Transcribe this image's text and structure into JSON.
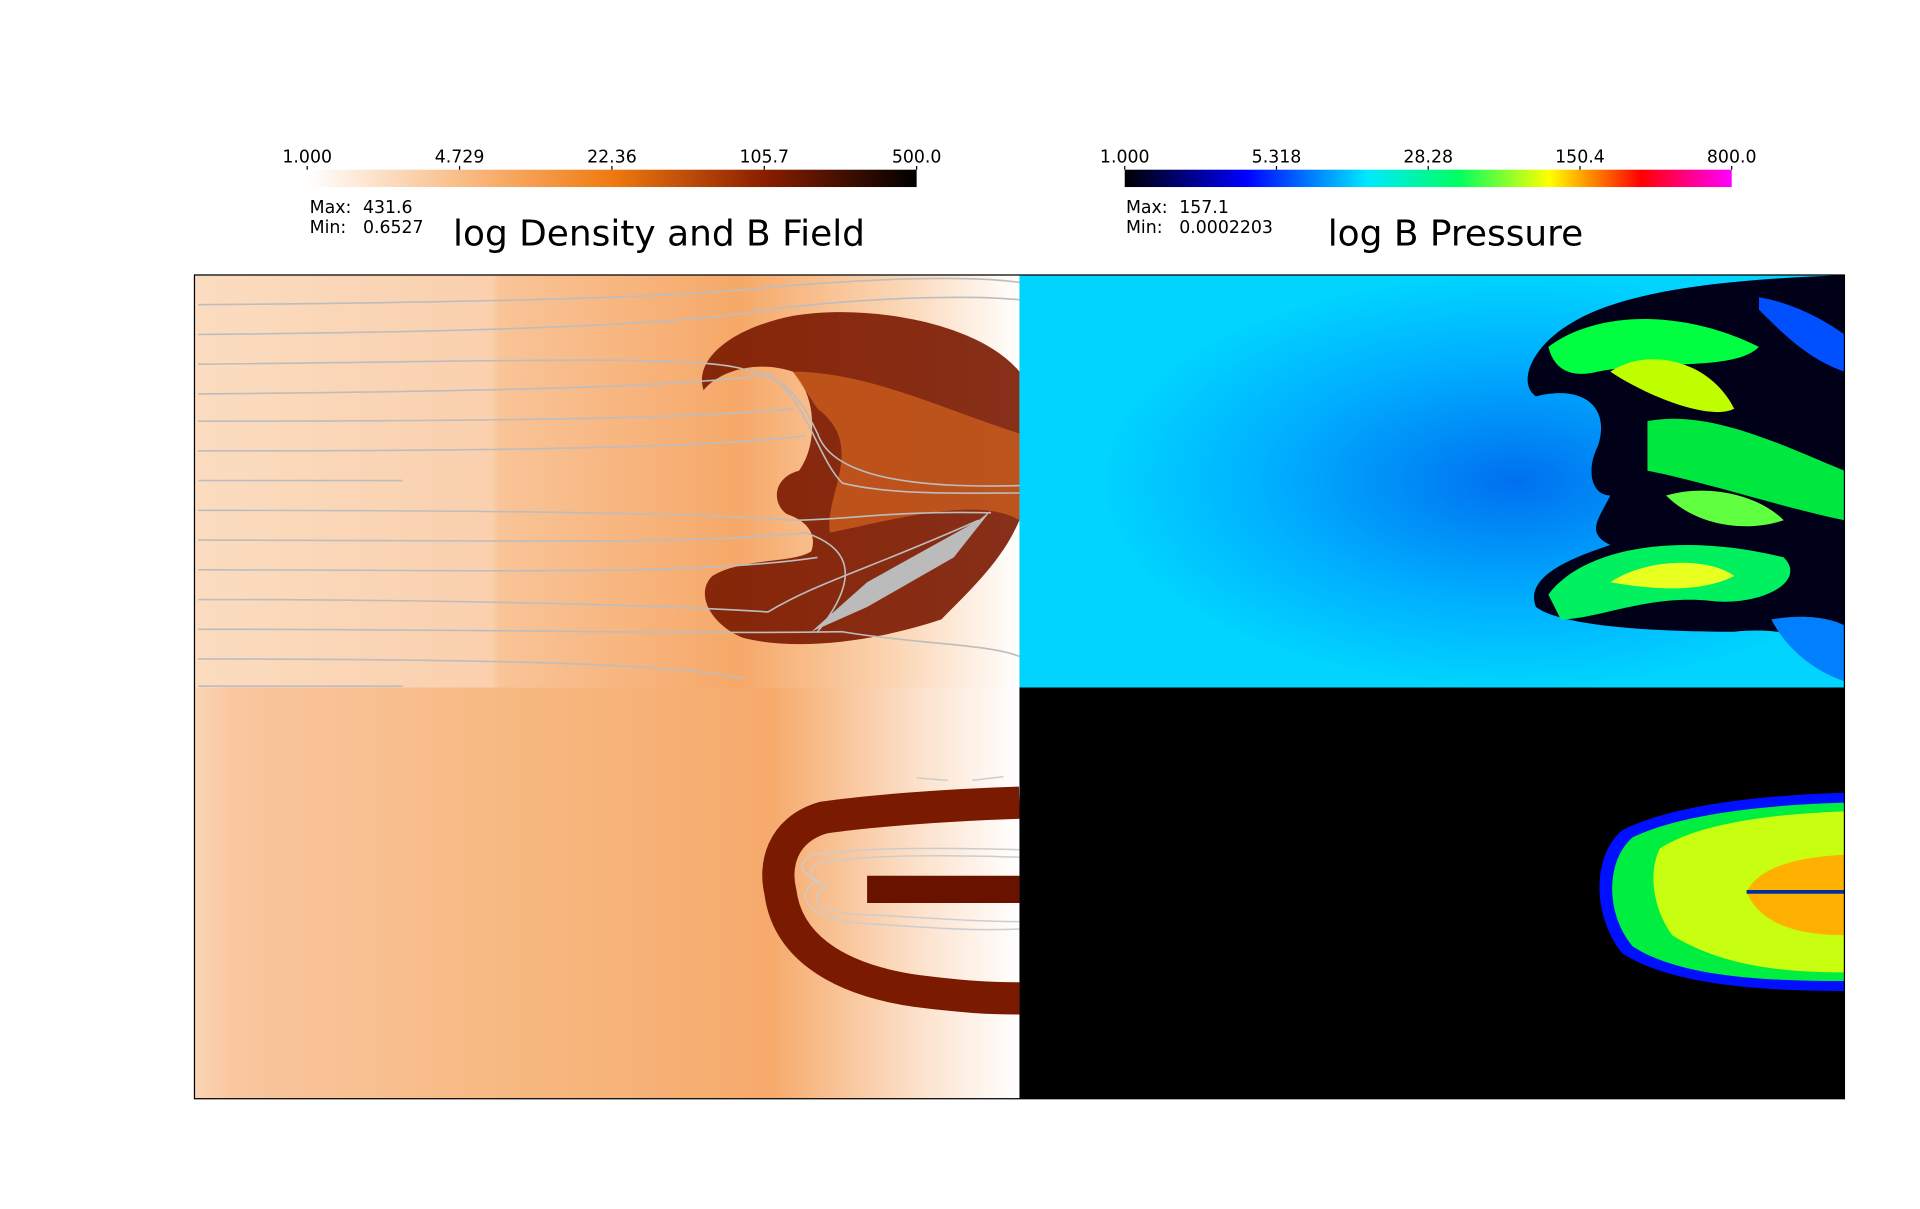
{
  "panels": [
    {
      "title": "log Density and B Field",
      "colorbar_ticks": [
        "1.000",
        "4.729",
        "22.36",
        "105.7",
        "500.0"
      ],
      "max_label": "Max:",
      "max": "431.6",
      "min_label": "Min:",
      "min": "0.6527"
    },
    {
      "title": "log B Pressure",
      "colorbar_ticks": [
        "1.000",
        "5.318",
        "28.28",
        "150.4",
        "800.0"
      ],
      "max_label": "Max:",
      "max": "157.1",
      "min_label": "Min:",
      "min": "0.0002203"
    }
  ]
}
